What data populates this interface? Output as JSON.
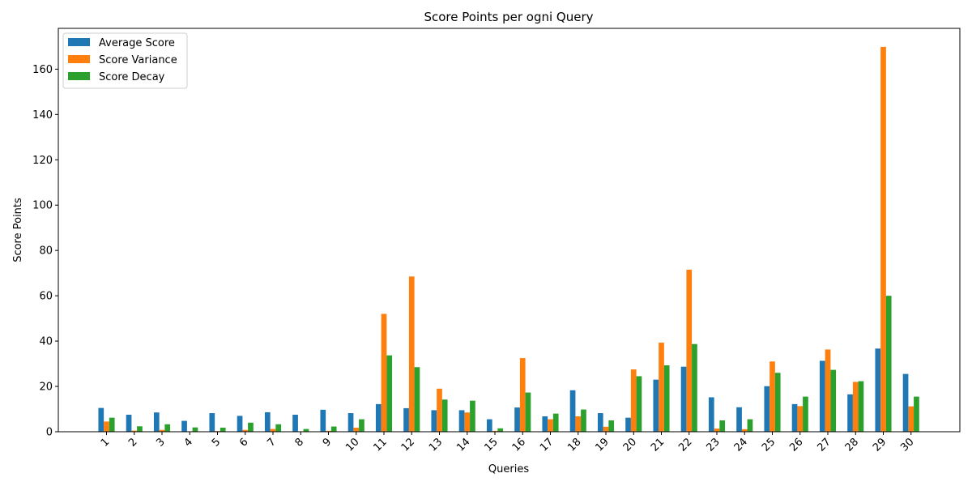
{
  "chart_data": {
    "type": "bar",
    "title": "Score Points per ogni Query",
    "xlabel": "Queries",
    "ylabel": "Score Points",
    "ylim": [
      0,
      178
    ],
    "yticks": [
      0,
      20,
      40,
      60,
      80,
      100,
      120,
      140,
      160
    ],
    "legend_position": "top-left",
    "grid": false,
    "categories": [
      "1",
      "2",
      "3",
      "4",
      "5",
      "6",
      "7",
      "8",
      "9",
      "10",
      "11",
      "12",
      "13",
      "14",
      "15",
      "16",
      "17",
      "18",
      "19",
      "20",
      "21",
      "22",
      "23",
      "24",
      "25",
      "26",
      "27",
      "28",
      "29",
      "30"
    ],
    "series": [
      {
        "name": "Average Score",
        "color": "#1f77b4",
        "values": [
          10.5,
          7.5,
          8.5,
          4.8,
          8.2,
          7.0,
          8.6,
          7.5,
          9.7,
          8.2,
          12.2,
          10.4,
          9.5,
          9.5,
          5.5,
          10.7,
          6.8,
          18.3,
          8.2,
          6.2,
          23.0,
          28.7,
          15.2,
          10.8,
          20.1,
          12.2,
          31.3,
          16.5,
          36.7,
          25.5
        ]
      },
      {
        "name": "Score Variance",
        "color": "#ff7f0e",
        "values": [
          4.5,
          0.5,
          0.8,
          0.2,
          0.3,
          0.8,
          1.2,
          0.2,
          0.4,
          1.8,
          52.0,
          68.5,
          19.0,
          8.5,
          0.4,
          32.5,
          5.5,
          6.8,
          2.2,
          27.5,
          39.3,
          71.5,
          1.4,
          1.1,
          31.0,
          11.3,
          36.3,
          22.0,
          169.8,
          11.2
        ]
      },
      {
        "name": "Score Decay",
        "color": "#2ca02c",
        "values": [
          6.2,
          2.4,
          3.3,
          1.9,
          1.8,
          4.0,
          3.3,
          1.2,
          2.3,
          5.5,
          33.7,
          28.5,
          14.2,
          13.7,
          1.5,
          17.3,
          8.0,
          9.8,
          5.0,
          24.5,
          29.3,
          38.7,
          5.0,
          5.5,
          26.0,
          15.5,
          27.3,
          22.3,
          60.0,
          15.5
        ]
      }
    ]
  }
}
